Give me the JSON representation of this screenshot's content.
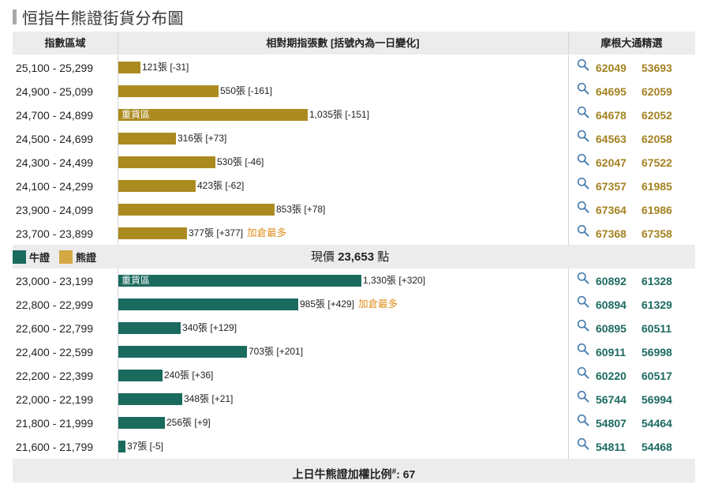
{
  "title": "恒指牛熊證街貨分布圖",
  "headers": {
    "range": "指數區域",
    "dist": "相對期指張數 [括號內為一日變化]",
    "picks": "摩根大通精選"
  },
  "colors": {
    "bear": "#ab8a20",
    "bull": "#1b6a5e",
    "tag": "#e08e1e"
  },
  "bear_rows": [
    {
      "range": "25,100 - 25,299",
      "contracts": 121,
      "label": "121張 [-31]",
      "inner": "",
      "tag": "",
      "codes": [
        "62049",
        "53693"
      ]
    },
    {
      "range": "24,900 - 25,099",
      "contracts": 550,
      "label": "550張 [-161]",
      "inner": "",
      "tag": "",
      "codes": [
        "64695",
        "62059"
      ]
    },
    {
      "range": "24,700 - 24,899",
      "contracts": 1035,
      "label": "1,035張 [-151]",
      "inner": "重貨區",
      "tag": "",
      "codes": [
        "64678",
        "62052"
      ]
    },
    {
      "range": "24,500 - 24,699",
      "contracts": 316,
      "label": "316張 [+73]",
      "inner": "",
      "tag": "",
      "codes": [
        "64563",
        "62058"
      ]
    },
    {
      "range": "24,300 - 24,499",
      "contracts": 530,
      "label": "530張 [-46]",
      "inner": "",
      "tag": "",
      "codes": [
        "62047",
        "67522"
      ]
    },
    {
      "range": "24,100 - 24,299",
      "contracts": 423,
      "label": "423張 [-62]",
      "inner": "",
      "tag": "",
      "codes": [
        "67357",
        "61985"
      ]
    },
    {
      "range": "23,900 - 24,099",
      "contracts": 853,
      "label": "853張 [+78]",
      "inner": "",
      "tag": "",
      "codes": [
        "67364",
        "61986"
      ]
    },
    {
      "range": "23,700 - 23,899",
      "contracts": 377,
      "label": "377張 [+377]",
      "inner": "",
      "tag": "加倉最多",
      "codes": [
        "67368",
        "67358"
      ]
    }
  ],
  "legend": {
    "bull": "牛證",
    "bear": "熊證"
  },
  "current_price": {
    "label": "現價",
    "value": "23,653",
    "unit": "點"
  },
  "bull_rows": [
    {
      "range": "23,000 - 23,199",
      "contracts": 1330,
      "label": "1,330張 [+320]",
      "inner": "重貨區",
      "tag": "",
      "codes": [
        "60892",
        "61328"
      ]
    },
    {
      "range": "22,800 - 22,999",
      "contracts": 985,
      "label": "985張 [+429]",
      "inner": "",
      "tag": "加倉最多",
      "codes": [
        "60894",
        "61329"
      ]
    },
    {
      "range": "22,600 - 22,799",
      "contracts": 340,
      "label": "340張 [+129]",
      "inner": "",
      "tag": "",
      "codes": [
        "60895",
        "60511"
      ]
    },
    {
      "range": "22,400 - 22,599",
      "contracts": 703,
      "label": "703張 [+201]",
      "inner": "",
      "tag": "",
      "codes": [
        "60911",
        "56998"
      ]
    },
    {
      "range": "22,200 - 22,399",
      "contracts": 240,
      "label": "240張 [+36]",
      "inner": "",
      "tag": "",
      "codes": [
        "60220",
        "60517"
      ]
    },
    {
      "range": "22,000 - 22,199",
      "contracts": 348,
      "label": "348張 [+21]",
      "inner": "",
      "tag": "",
      "codes": [
        "56744",
        "56994"
      ]
    },
    {
      "range": "21,800 - 21,999",
      "contracts": 256,
      "label": "256張 [+9]",
      "inner": "",
      "tag": "",
      "codes": [
        "54807",
        "54464"
      ]
    },
    {
      "range": "21,600 - 21,799",
      "contracts": 37,
      "label": "37張 [-5]",
      "inner": "",
      "tag": "",
      "codes": [
        "54811",
        "54468"
      ]
    }
  ],
  "footer": {
    "label": "上日牛熊證加權比例",
    "mark": "#",
    "value": ": 67"
  }
}
